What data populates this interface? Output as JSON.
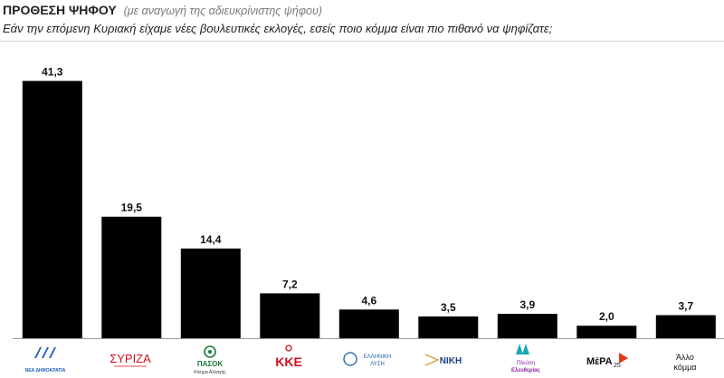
{
  "header": {
    "title": "ΠΡΟΘΕΣΗ ΨΗΦΟΥ",
    "subtitle": "(με αναγωγή της αδιευκρίνιστης ψήφου)",
    "question": "Εάν την επόμενη Κυριακή είχαμε νέες βουλευτικές εκλογές, εσείς ποιο κόμμα είναι πιο πιθανό να ψηφίζατε;"
  },
  "chart_data": {
    "type": "bar",
    "categories": [
      "ΝΔ",
      "ΣΥΡΙΖΑ",
      "ΠΑΣΟΚ",
      "ΚΚΕ",
      "ΕΛΛΗΝΙΚΗ ΛΥΣΗ",
      "ΝΙΚΗ",
      "Πλεύση Ελευθερίας",
      "ΜέΡΑ25",
      "Άλλο κόμμα"
    ],
    "values": [
      41.3,
      19.5,
      14.4,
      7.2,
      4.6,
      3.5,
      3.9,
      2.0,
      3.7
    ],
    "value_labels": [
      "41,3",
      "19,5",
      "14,4",
      "7,2",
      "4,6",
      "3,5",
      "3,9",
      "2,0",
      "3,7"
    ],
    "ylim": [
      0,
      45
    ],
    "bar_color": "#000000",
    "grid": false,
    "title": "",
    "xlabel": "",
    "ylabel": ""
  },
  "logos": {
    "nd": {
      "icon": "nd-logo",
      "text": "ΝΕΑ ΔΗΜΟΚΡΑΤΙΑ",
      "color": "#1f5fbf"
    },
    "syriza": {
      "icon": "syriza-logo",
      "text": "ΣΥΡΙΖΑ",
      "color": "#d0101e"
    },
    "pasok": {
      "icon": "pasok-logo",
      "text": "ΠΑΣΟΚ",
      "subtext": "Κίνημα Αλλαγής",
      "color": "#1c7a3a"
    },
    "kke": {
      "icon": "kke-logo",
      "text": "ΚΚΕ",
      "color": "#d0101e"
    },
    "elliniki_lysi": {
      "icon": "elliniki-lysi-logo",
      "text": "ΕΛΛΗΝΙΚΗ",
      "text2": "ΛΥΣΗ",
      "color": "#1f5fa8"
    },
    "niki": {
      "icon": "niki-logo",
      "text": "ΝΙΚΗ",
      "color": "#1c3f8a"
    },
    "plefsi": {
      "icon": "plefsi-logo",
      "text": "Πλεύση",
      "text2": "Ελευθερίας",
      "color": "#8a1fa0"
    },
    "mera25": {
      "icon": "mera25-logo",
      "text": "ΜέΡΑ",
      "text2": "25",
      "color": "#e4371a"
    },
    "allo": {
      "text": "Άλλο",
      "text2": "κόμμα"
    }
  }
}
